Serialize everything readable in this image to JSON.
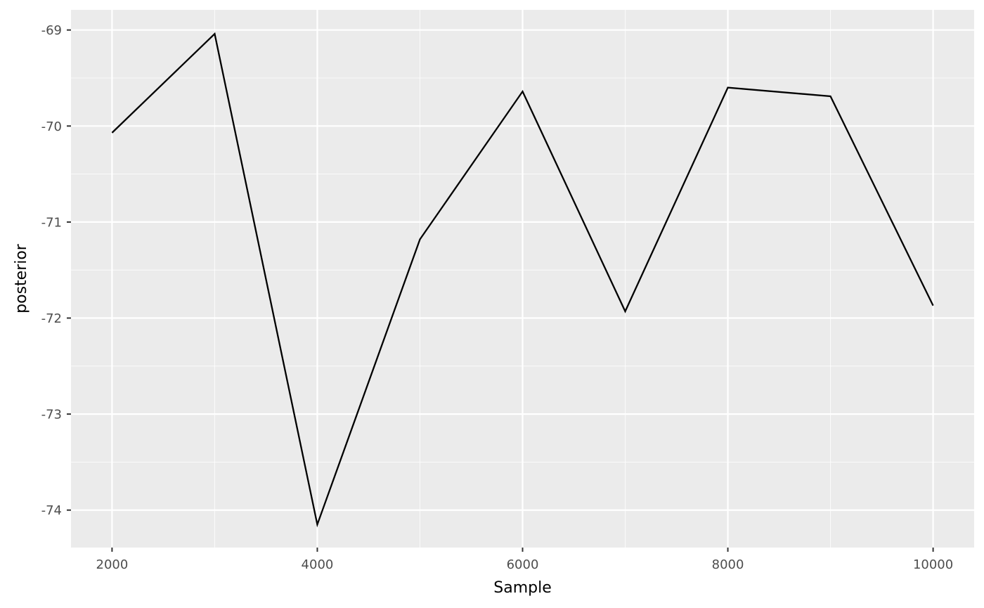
{
  "chart_data": {
    "type": "line",
    "title": "",
    "xlabel": "Sample",
    "ylabel": "posterior",
    "xlim": [
      1600,
      10400
    ],
    "ylim": [
      -74.39,
      -68.79
    ],
    "x_ticks": [
      2000,
      4000,
      6000,
      8000,
      10000
    ],
    "x_tick_labels": [
      "2000",
      "4000",
      "6000",
      "8000",
      "10000"
    ],
    "x_minor_ticks": [
      3000,
      5000,
      7000,
      9000
    ],
    "y_ticks": [
      -69,
      -70,
      -71,
      -72,
      -73,
      -74
    ],
    "y_tick_labels": [
      "-69",
      "-70",
      "-71",
      "-72",
      "-73",
      "-74"
    ],
    "y_minor_ticks": [
      -69.5,
      -70.5,
      -71.5,
      -72.5,
      -73.5
    ],
    "grid": true,
    "series": [
      {
        "x": [
          2000,
          3000,
          4000,
          5000,
          6000,
          7000,
          8000,
          9000,
          10000
        ],
        "values": [
          -70.07,
          -69.04,
          -74.15,
          -71.18,
          -69.64,
          -71.93,
          -69.6,
          -69.69,
          -71.87
        ]
      }
    ],
    "colors": {
      "panel_background": "#ebebeb",
      "grid_major": "#ffffff",
      "line": "#000000",
      "tick_text": "#4d4d4d",
      "axis_title_text": "#000000"
    }
  }
}
